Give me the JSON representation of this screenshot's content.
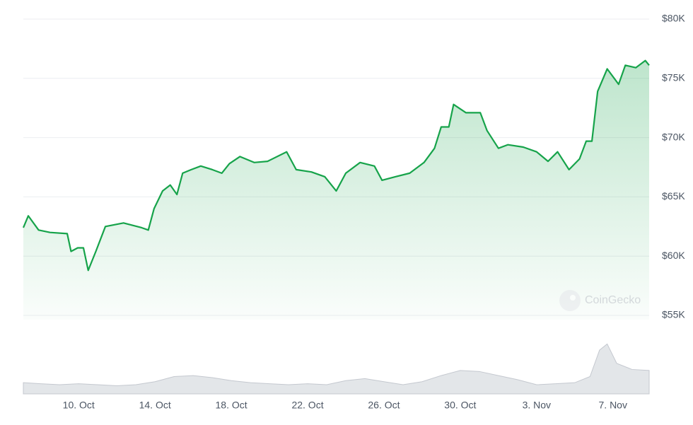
{
  "chart_data": {
    "type": "line",
    "color": "#16a34a",
    "xlim": [
      7.1,
      39.9
    ],
    "ylim": [
      55000,
      80000
    ],
    "xticks": [
      {
        "value": 10,
        "label": "10. Oct"
      },
      {
        "value": 14,
        "label": "14. Oct"
      },
      {
        "value": 18,
        "label": "18. Oct"
      },
      {
        "value": 22,
        "label": "22. Oct"
      },
      {
        "value": 26,
        "label": "26. Oct"
      },
      {
        "value": 30,
        "label": "30. Oct"
      },
      {
        "value": 34,
        "label": "3. Nov"
      },
      {
        "value": 38,
        "label": "7. Nov"
      }
    ],
    "yticks": [
      {
        "value": 80000,
        "label": "$80K"
      },
      {
        "value": 75000,
        "label": "$75K"
      },
      {
        "value": 70000,
        "label": "$70K"
      },
      {
        "value": 65000,
        "label": "$65K"
      },
      {
        "value": 60000,
        "label": "$60K"
      },
      {
        "value": 55000,
        "label": "$55K"
      }
    ],
    "grid": true,
    "watermark": "CoinGecko",
    "x": [
      7.1,
      7.36,
      7.9,
      8.5,
      9.4,
      9.6,
      9.95,
      10.25,
      10.5,
      10.9,
      11.4,
      12.35,
      13.3,
      13.65,
      13.95,
      14.4,
      14.8,
      15.15,
      15.45,
      15.9,
      16.4,
      17.0,
      17.5,
      17.9,
      18.45,
      19.2,
      19.9,
      20.9,
      21.4,
      22.2,
      22.9,
      23.5,
      24.0,
      24.75,
      25.5,
      25.9,
      26.6,
      27.35,
      28.1,
      28.65,
      29.0,
      29.4,
      29.65,
      30.3,
      31.05,
      31.4,
      32.0,
      32.5,
      33.3,
      34.0,
      34.6,
      35.1,
      35.7,
      36.25,
      36.6,
      36.9,
      37.2,
      37.7,
      38.3,
      38.65,
      39.2,
      39.7,
      39.9
    ],
    "values": [
      62400,
      63400,
      62200,
      62000,
      61900,
      60400,
      60700,
      60700,
      58800,
      60400,
      62500,
      62800,
      62400,
      62200,
      64000,
      65500,
      66000,
      65200,
      67000,
      67300,
      67600,
      67300,
      67000,
      67800,
      68400,
      67900,
      68000,
      68800,
      67300,
      67100,
      66700,
      65500,
      67000,
      67900,
      67600,
      66400,
      66700,
      67000,
      67900,
      69100,
      70900,
      70900,
      72800,
      72100,
      72100,
      70600,
      69100,
      69400,
      69200,
      68800,
      68000,
      68800,
      67300,
      68200,
      69700,
      69700,
      73900,
      75800,
      74500,
      76100,
      75900,
      76500,
      76100
    ],
    "volume": {
      "color": "#d1d5db",
      "y2lim": [
        0,
        100
      ],
      "x": [
        7.1,
        8,
        9,
        10,
        11,
        12,
        13,
        14,
        15,
        16,
        17,
        18,
        19,
        20,
        21,
        22,
        23,
        24,
        25,
        26,
        27,
        28,
        29,
        30,
        31,
        32,
        33,
        34,
        35,
        36,
        36.8,
        37.3,
        37.7,
        38.2,
        39,
        39.9
      ],
      "values": [
        22,
        20,
        18,
        20,
        18,
        16,
        18,
        24,
        34,
        36,
        32,
        26,
        22,
        20,
        18,
        20,
        18,
        26,
        30,
        24,
        18,
        24,
        36,
        46,
        44,
        36,
        28,
        18,
        20,
        22,
        34,
        86,
        98,
        60,
        48,
        46
      ]
    }
  }
}
